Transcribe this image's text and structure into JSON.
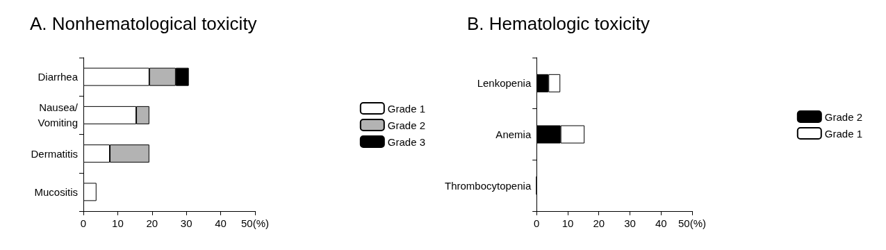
{
  "chart_data": [
    {
      "type": "bar",
      "title": "A. Nonhematological toxicity",
      "orientation": "horizontal",
      "stacked": true,
      "categories": [
        "Diarrhea",
        "Nausea/\nVomiting",
        "Dermatitis",
        "Mucositis"
      ],
      "series": [
        {
          "name": "Grade 1",
          "color": "#ffffff",
          "values": [
            19.2,
            15.4,
            7.7,
            3.8
          ]
        },
        {
          "name": "Grade 2",
          "color": "#b3b3b3",
          "values": [
            7.7,
            3.8,
            11.5,
            null
          ]
        },
        {
          "name": "Grade 3",
          "color": "#000000",
          "values": [
            3.8,
            null,
            null,
            null
          ]
        }
      ],
      "xlim": [
        0,
        50
      ],
      "xticks": [
        0,
        10,
        20,
        30,
        40,
        {
          "value": 50,
          "label": "50(%)"
        }
      ],
      "grid": false,
      "legend": "right"
    },
    {
      "type": "bar",
      "title": "B. Hematologic toxicity",
      "orientation": "horizontal",
      "stacked": true,
      "categories": [
        "Lenkopenia",
        "Anemia",
        "Thrombocytopenia"
      ],
      "series": [
        {
          "name": "Grade 2",
          "color": "#000000",
          "values": [
            3.8,
            7.7,
            0
          ]
        },
        {
          "name": "Grade 1",
          "color": "#ffffff",
          "values": [
            3.8,
            7.7,
            0
          ]
        }
      ],
      "xlim": [
        0,
        50
      ],
      "xticks": [
        0,
        10,
        20,
        30,
        40,
        {
          "value": 50,
          "label": "50(%)"
        }
      ],
      "grid": false,
      "legend": "right"
    }
  ]
}
